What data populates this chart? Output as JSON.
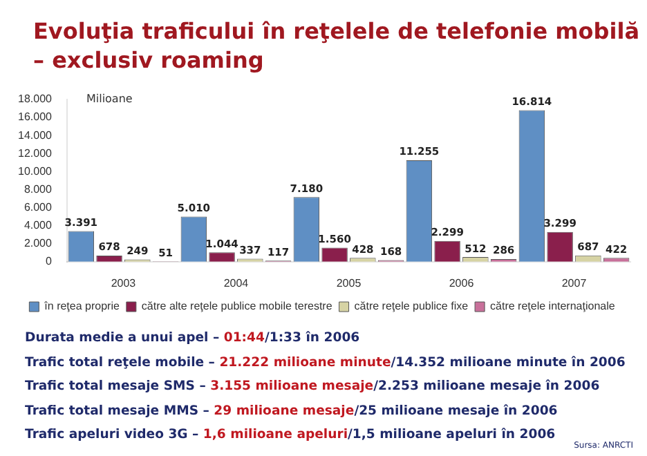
{
  "chart_data": {
    "type": "bar",
    "title": "Evoluţia traficului în reţelele de telefonie mobilă\n– exclusiv roaming",
    "ylabel": "Milioane",
    "categories": [
      "2003",
      "2004",
      "2005",
      "2006",
      "2007"
    ],
    "series": [
      {
        "name": "în reţea proprie",
        "color": "#5f8fc4",
        "values": [
          3391,
          5010,
          7180,
          11255,
          16814
        ],
        "value_labels": [
          "3.391",
          "5.010",
          "7.180",
          "11.255",
          "16.814"
        ]
      },
      {
        "name": "către alte reţele publice mobile terestre",
        "color": "#8a1f4c",
        "values": [
          678,
          1044,
          1560,
          2299,
          3299
        ],
        "value_labels": [
          "678",
          "1.044",
          "1.560",
          "2.299",
          "3.299"
        ]
      },
      {
        "name": "către reţele publice fixe",
        "color": "#d6d3a4",
        "values": [
          249,
          337,
          428,
          512,
          687
        ],
        "value_labels": [
          "249",
          "337",
          "428",
          "512",
          "687"
        ]
      },
      {
        "name": "către reţele internaţionale",
        "color": "#c8709a",
        "values": [
          51,
          117,
          168,
          286,
          422
        ],
        "value_labels": [
          "51",
          "117",
          "168",
          "286",
          "422"
        ]
      }
    ],
    "ylim": [
      0,
      18000
    ],
    "yticks": [
      {
        "value": 0,
        "label": "0"
      },
      {
        "value": 2000,
        "label": "2.000"
      },
      {
        "value": 4000,
        "label": "4.000"
      },
      {
        "value": 6000,
        "label": "6.000"
      },
      {
        "value": 8000,
        "label": "8.000"
      },
      {
        "value": 10000,
        "label": "10.000"
      },
      {
        "value": 12000,
        "label": "12.000"
      },
      {
        "value": 14000,
        "label": "14.000"
      },
      {
        "value": 16000,
        "label": "16.000"
      },
      {
        "value": 18000,
        "label": "18.000"
      }
    ],
    "grid": false,
    "legend": "bottom",
    "annotations": [
      "Durata medie a unui apel – 01:44/1:33 în 2006",
      "Trafic total reţele mobile – 21.222 milioane minute/14.352 milioane minute în 2006",
      "Trafic total mesaje SMS – 3.155 milioane mesaje/2.253 milioane mesaje în 2006",
      "Trafic total mesaje MMS – 29 milioane mesaje/25 milioane mesaje în 2006",
      "Trafic apeluri video 3G – 1,6 milioane apeluri/1,5 milioane apeluri în 2006",
      "Sursa: ANRCTI"
    ]
  }
}
